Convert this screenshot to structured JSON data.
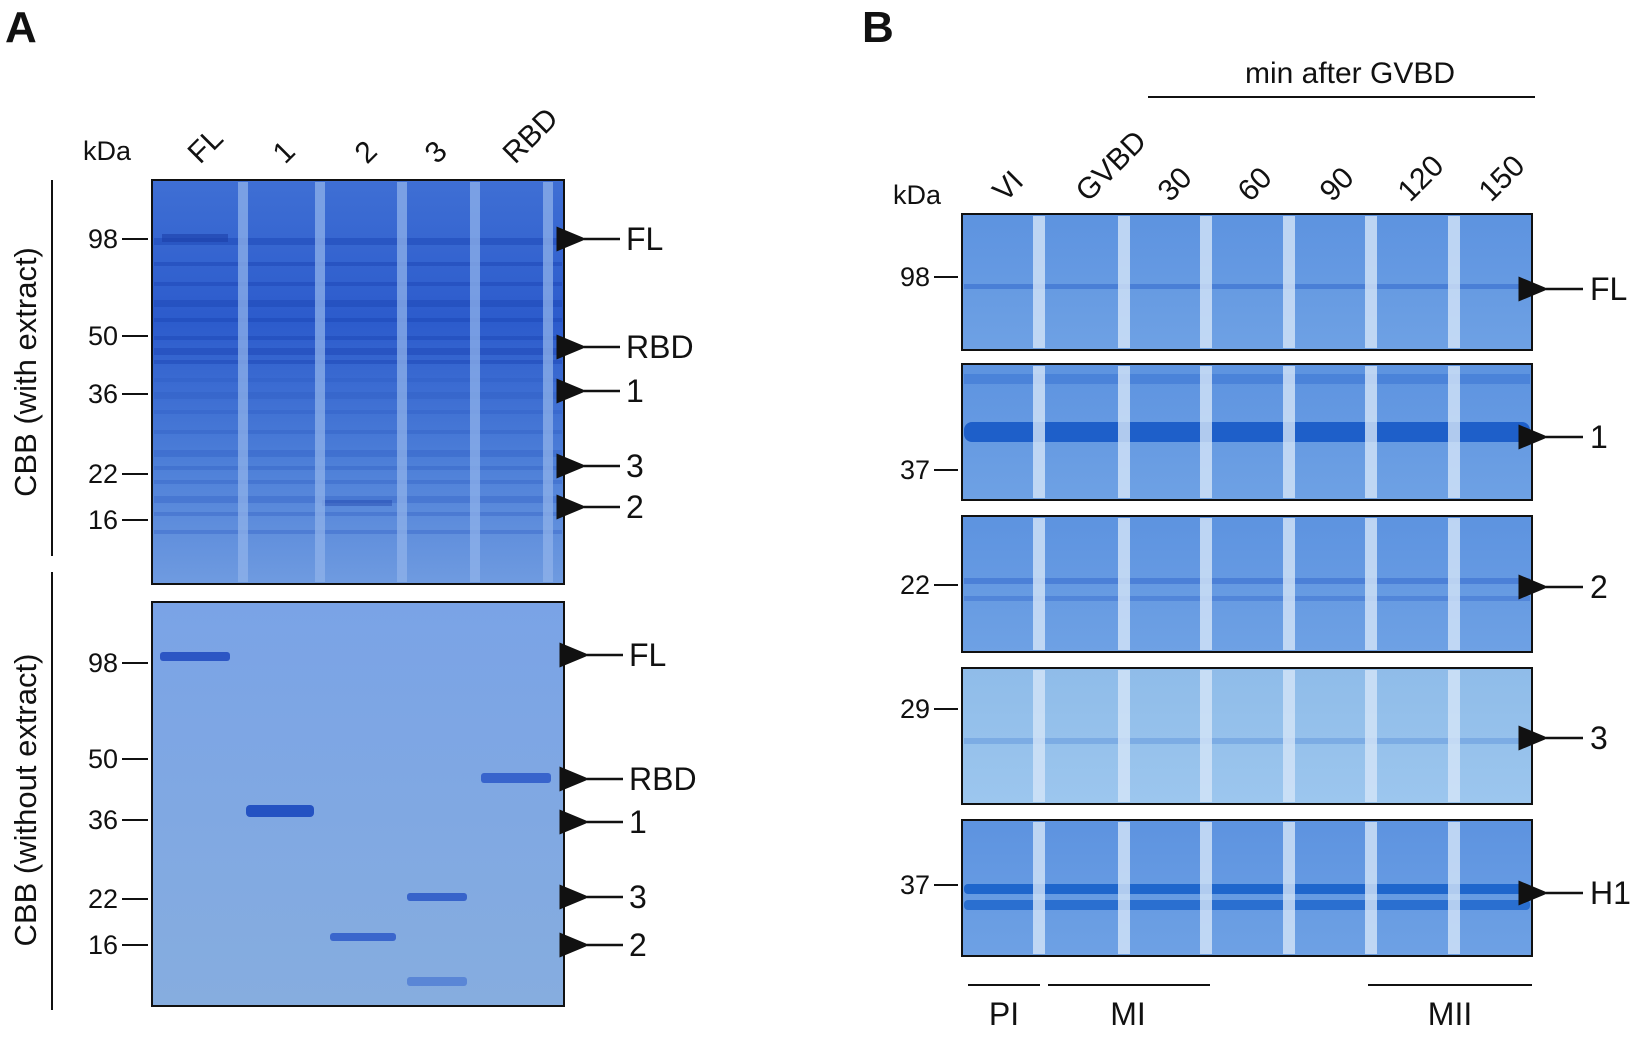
{
  "panelA": {
    "letter": "A",
    "kda": "kDa",
    "lanes": [
      "FL",
      "1",
      "2",
      "3",
      "RBD"
    ],
    "top": {
      "side_label": "CBB (with extract)",
      "markers": [
        "98",
        "50",
        "36",
        "22",
        "16"
      ],
      "arrows": [
        "FL",
        "RBD",
        "1",
        "3",
        "2"
      ]
    },
    "bottom": {
      "side_label": "CBB (without extract)",
      "markers": [
        "98",
        "50",
        "36",
        "22",
        "16"
      ],
      "arrows": [
        "FL",
        "RBD",
        "1",
        "3",
        "2"
      ]
    }
  },
  "panelB": {
    "letter": "B",
    "header": "min after GVBD",
    "kda": "kDa",
    "lanes": [
      "VI",
      "GVBD",
      "30",
      "60",
      "90",
      "120",
      "150"
    ],
    "strips": [
      {
        "marker": "98",
        "arrow": "FL"
      },
      {
        "marker": "37",
        "arrow": "1"
      },
      {
        "marker": "22",
        "arrow": "2"
      },
      {
        "marker": "29",
        "arrow": "3"
      },
      {
        "marker": "37",
        "arrow": "H1"
      }
    ],
    "phases": [
      "PI",
      "MI",
      "MII"
    ]
  }
}
